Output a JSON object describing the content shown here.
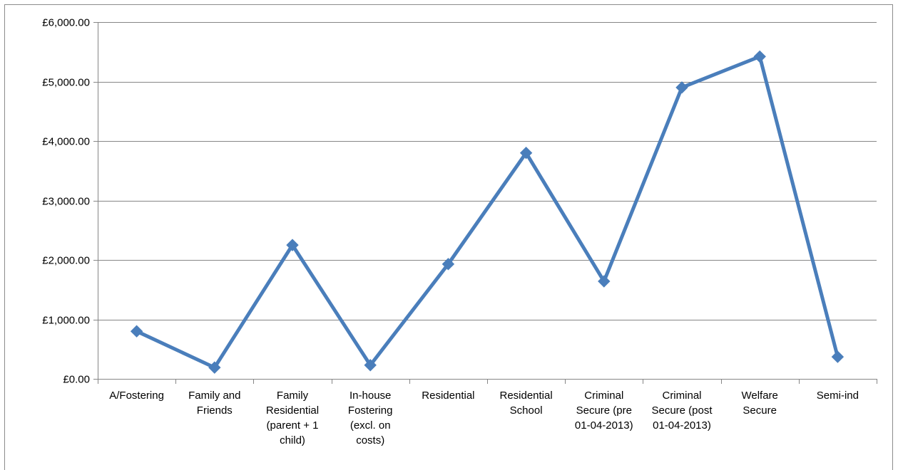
{
  "chart_data": {
    "type": "line",
    "title": "",
    "xlabel": "",
    "ylabel": "",
    "ylim": [
      0,
      6000
    ],
    "yticks": [
      0,
      1000,
      2000,
      3000,
      4000,
      5000,
      6000
    ],
    "ytick_labels": [
      "£0.00",
      "£1,000.00",
      "£2,000.00",
      "£3,000.00",
      "£4,000.00",
      "£5,000.00",
      "£6,000.00"
    ],
    "grid": true,
    "legend": "none",
    "categories": [
      [
        "A/Fostering"
      ],
      [
        "Family and",
        "Friends"
      ],
      [
        "Family",
        "Residential",
        "(parent + 1",
        "child)"
      ],
      [
        "In-house",
        "Fostering",
        "(excl. on",
        "costs)"
      ],
      [
        "Residential"
      ],
      [
        "Residential",
        "School"
      ],
      [
        "Criminal",
        "Secure (pre",
        "01-04-2013)"
      ],
      [
        "Criminal",
        "Secure (post",
        "01-04-2013)"
      ],
      [
        "Welfare",
        "Secure"
      ],
      [
        "Semi-ind"
      ]
    ],
    "series": [
      {
        "values": [
          800,
          190,
          2250,
          230,
          1930,
          3800,
          1640,
          4900,
          5420,
          370
        ],
        "color": "#4a7ebb",
        "marker": "diamond"
      }
    ]
  }
}
